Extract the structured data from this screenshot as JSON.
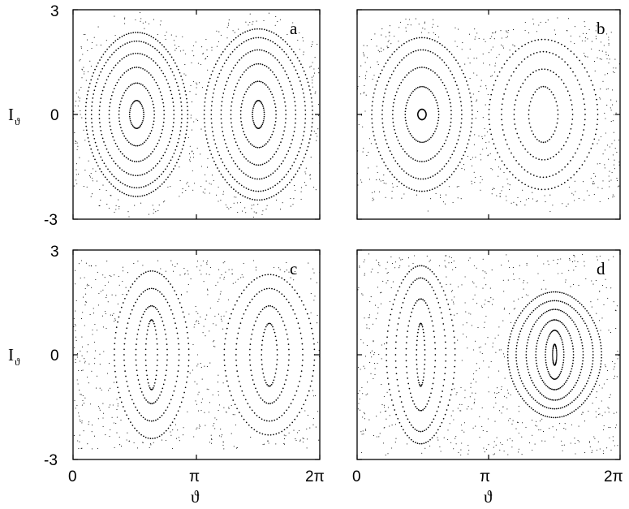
{
  "chart_data": [
    {
      "type": "scatter",
      "panel": "a",
      "xlabel": "ϑ",
      "ylabel": "I",
      "ylabel_sub": "ϑ",
      "xlim": [
        0,
        6.2832
      ],
      "ylim": [
        -3,
        3
      ],
      "x_ticks": [
        "0",
        "π",
        "2π"
      ],
      "y_ticks": [
        "3",
        "0",
        "-3"
      ],
      "chaotic_band": {
        "y_half_width_edge": 2.1,
        "y_half_width_mid": 2.95
      },
      "islands": [
        {
          "cx": 1.62,
          "cy": 0.0,
          "rx": [
            0.18,
            0.45,
            0.7,
            0.95,
            1.15,
            1.3
          ],
          "ry": [
            0.4,
            0.9,
            1.35,
            1.75,
            2.1,
            2.35
          ]
        },
        {
          "cx": 4.72,
          "cy": 0.0,
          "rx": [
            0.15,
            0.45,
            0.7,
            0.95,
            1.2,
            1.38
          ],
          "ry": [
            0.4,
            0.95,
            1.45,
            1.85,
            2.2,
            2.45
          ]
        }
      ]
    },
    {
      "type": "scatter",
      "panel": "b",
      "xlabel": "",
      "ylabel": "",
      "xlim": [
        0,
        6.2832
      ],
      "ylim": [
        -3,
        3
      ],
      "chaotic_band": {
        "y_half_width_edge": 2.3,
        "y_half_width_mid": 2.8
      },
      "islands": [
        {
          "cx": 1.55,
          "cy": 0.0,
          "rx": [
            0.1,
            0.4,
            0.7,
            0.95,
            1.2
          ],
          "ry": [
            0.15,
            0.8,
            1.35,
            1.85,
            2.2
          ]
        },
        {
          "cx": 4.45,
          "cy": 0.0,
          "rx": [
            0.35,
            0.7,
            1.0,
            1.3
          ],
          "ry": [
            0.8,
            1.3,
            1.8,
            2.15
          ]
        }
      ]
    },
    {
      "type": "scatter",
      "panel": "c",
      "xlabel": "ϑ",
      "ylabel": "I",
      "ylabel_sub": "ϑ",
      "xlim": [
        0,
        6.2832
      ],
      "ylim": [
        -3,
        3
      ],
      "x_ticks": [
        "0",
        "π",
        "2π"
      ],
      "y_ticks": [
        "3",
        "0",
        "-3"
      ],
      "chaotic_band": {
        "y_half_width_edge": 2.7,
        "y_half_width_mid": 2.7
      },
      "islands": [
        {
          "cx": 2.0,
          "cy": 0.0,
          "rx": [
            0.15,
            0.4,
            0.7,
            0.95
          ],
          "ry": [
            1.0,
            1.4,
            1.9,
            2.4
          ]
        },
        {
          "cx": 5.0,
          "cy": 0.0,
          "rx": [
            0.2,
            0.5,
            0.85,
            1.15
          ],
          "ry": [
            0.9,
            1.4,
            1.9,
            2.3
          ]
        }
      ]
    },
    {
      "type": "scatter",
      "panel": "d",
      "xlabel": "ϑ",
      "ylabel": "",
      "xlim": [
        0,
        6.2832
      ],
      "ylim": [
        -3,
        3
      ],
      "x_ticks": [
        "0",
        "π",
        "2π"
      ],
      "chaotic_band": {
        "y_half_width_edge": 2.9,
        "y_half_width_mid": 2.9
      },
      "islands": [
        {
          "cx": 1.52,
          "cy": 0.0,
          "rx": [
            0.1,
            0.35,
            0.6,
            0.82
          ],
          "ry": [
            0.9,
            1.6,
            2.2,
            2.55
          ]
        },
        {
          "cx": 4.72,
          "cy": 0.0,
          "rx": [
            0.05,
            0.22,
            0.45,
            0.68,
            0.92,
            1.12
          ],
          "ry": [
            0.3,
            0.7,
            1.0,
            1.3,
            1.55,
            1.8
          ]
        }
      ]
    }
  ]
}
